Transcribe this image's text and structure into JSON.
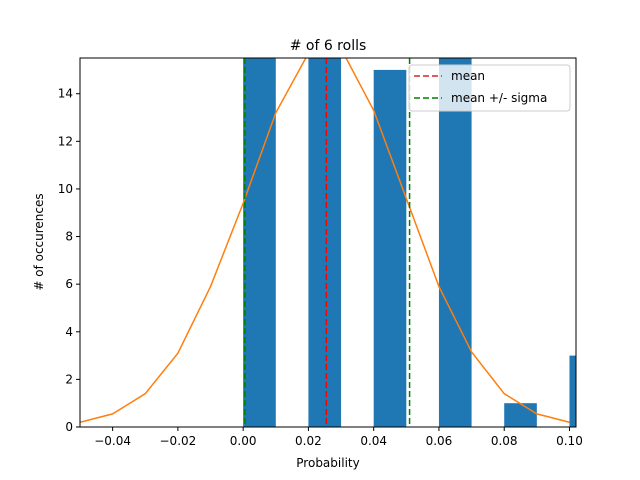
{
  "chart_data": {
    "type": "bar",
    "title": "# of 6 rolls",
    "xlabel": "Probability",
    "ylabel": "# of occurences",
    "xlim": [
      -0.05,
      0.102
    ],
    "ylim": [
      0,
      15.5
    ],
    "xticks": [
      -0.04,
      -0.02,
      0.0,
      0.02,
      0.04,
      0.06,
      0.08,
      0.1
    ],
    "xtick_labels": [
      "−0.04",
      "−0.02",
      "0.00",
      "0.02",
      "0.04",
      "0.06",
      "0.08",
      "0.10"
    ],
    "yticks": [
      0,
      2,
      4,
      6,
      8,
      10,
      12,
      14
    ],
    "yticks_labels": [
      "0",
      "2",
      "4",
      "6",
      "8",
      "10",
      "12",
      "14"
    ],
    "bars": [
      {
        "x0": 0.0,
        "x1": 0.01,
        "value": 15.5
      },
      {
        "x0": 0.02,
        "x1": 0.03,
        "value": 15.5
      },
      {
        "x0": 0.04,
        "x1": 0.05,
        "value": 15
      },
      {
        "x0": 0.06,
        "x1": 0.07,
        "value": 15.5
      },
      {
        "x0": 0.08,
        "x1": 0.09,
        "value": 1
      },
      {
        "x0": 0.1,
        "x1": 0.11,
        "value": 3
      }
    ],
    "curve": {
      "x": [
        -0.05,
        -0.04,
        -0.03,
        -0.02,
        -0.01,
        0.0,
        0.01,
        0.02,
        0.03,
        0.04,
        0.05,
        0.06,
        0.07,
        0.08,
        0.09,
        0.1
      ],
      "y": [
        0.2,
        0.55,
        1.4,
        3.1,
        5.9,
        9.4,
        13.2,
        15.7,
        15.9,
        13.3,
        9.6,
        5.9,
        3.15,
        1.4,
        0.55,
        0.2
      ]
    },
    "mean": 0.0255,
    "sigma_lines": [
      0.0005,
      0.051
    ],
    "legend": {
      "placement": "top-right",
      "entries": [
        {
          "label": "mean",
          "color": "#d62728",
          "style": "dashed"
        },
        {
          "label": "mean +/- sigma",
          "color": "#008000",
          "style": "dashed"
        }
      ]
    },
    "colors": {
      "bars": "#1f77b4",
      "curve": "#ff7f0e",
      "mean": "#ff0000",
      "sigma": "#008000"
    }
  }
}
